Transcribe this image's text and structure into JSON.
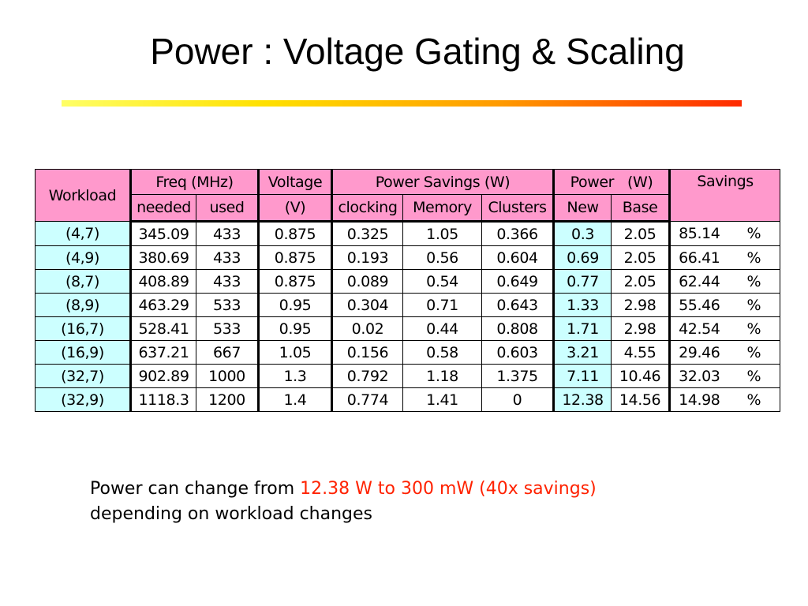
{
  "slide": {
    "title": "Power : Voltage Gating & Scaling"
  },
  "table": {
    "headers": {
      "workload": "Workload",
      "freq": "Freq (MHz)",
      "voltage": "Voltage",
      "voltage_unit": "(V)",
      "power_savings": "Power Savings (W)",
      "power": "Power   (W)",
      "savings": "Savings",
      "needed": "needed",
      "used": "used",
      "clocking": "clocking",
      "memory": "Memory",
      "clusters": "Clusters",
      "new": "New",
      "base": "Base"
    },
    "rows": [
      {
        "workload": "(4,7)",
        "needed": "345.09",
        "used": "433",
        "voltage": "0.875",
        "clocking": "0.325",
        "memory": "1.05",
        "clusters": "0.366",
        "new": "0.3",
        "base": "2.05",
        "savings": "85.14",
        "pct": "%"
      },
      {
        "workload": "(4,9)",
        "needed": "380.69",
        "used": "433",
        "voltage": "0.875",
        "clocking": "0.193",
        "memory": "0.56",
        "clusters": "0.604",
        "new": "0.69",
        "base": "2.05",
        "savings": "66.41",
        "pct": "%"
      },
      {
        "workload": "(8,7)",
        "needed": "408.89",
        "used": "433",
        "voltage": "0.875",
        "clocking": "0.089",
        "memory": "0.54",
        "clusters": "0.649",
        "new": "0.77",
        "base": "2.05",
        "savings": "62.44",
        "pct": "%"
      },
      {
        "workload": "(8,9)",
        "needed": "463.29",
        "used": "533",
        "voltage": "0.95",
        "clocking": "0.304",
        "memory": "0.71",
        "clusters": "0.643",
        "new": "1.33",
        "base": "2.98",
        "savings": "55.46",
        "pct": "%"
      },
      {
        "workload": "(16,7)",
        "needed": "528.41",
        "used": "533",
        "voltage": "0.95",
        "clocking": "0.02",
        "memory": "0.44",
        "clusters": "0.808",
        "new": "1.71",
        "base": "2.98",
        "savings": "42.54",
        "pct": "%"
      },
      {
        "workload": "(16,9)",
        "needed": "637.21",
        "used": "667",
        "voltage": "1.05",
        "clocking": "0.156",
        "memory": "0.58",
        "clusters": "0.603",
        "new": "3.21",
        "base": "4.55",
        "savings": "29.46",
        "pct": "%"
      },
      {
        "workload": "(32,7)",
        "needed": "902.89",
        "used": "1000",
        "voltage": "1.3",
        "clocking": "0.792",
        "memory": "1.18",
        "clusters": "1.375",
        "new": "7.11",
        "base": "10.46",
        "savings": "32.03",
        "pct": "%"
      },
      {
        "workload": "(32,9)",
        "needed": "1118.3",
        "used": "1200",
        "voltage": "1.4",
        "clocking": "0.774",
        "memory": "1.41",
        "clusters": "0",
        "new": "12.38",
        "base": "14.56",
        "savings": "14.98",
        "pct": "%"
      }
    ]
  },
  "note": {
    "prefix": "Power can change from ",
    "highlight": "12.38 W to 300 mW (40x savings)",
    "suffix": "depending on workload changes"
  },
  "colors": {
    "header_bg": "#ff99cc",
    "highlight_bg": "#ccffff",
    "note_highlight": "#ff2200"
  }
}
